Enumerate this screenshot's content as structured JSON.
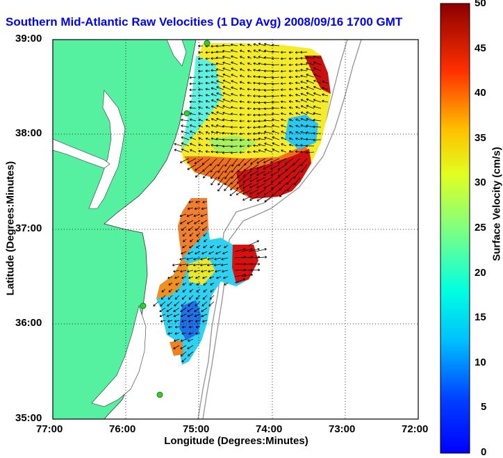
{
  "title": "Southern Mid-Atlantic Raw Velocities (1 Day Avg) 2008/09/16 1700 GMT",
  "axes": {
    "xlabel": "Longitude (Degrees:Minutes)",
    "ylabel": "Latitude (Degrees:Minutes)",
    "x_ticks": [
      "77:00",
      "76:00",
      "75:00",
      "74:00",
      "73:00",
      "72:00"
    ],
    "y_ticks": [
      "39:00",
      "38:00",
      "37:00",
      "36:00",
      "35:00"
    ],
    "grid": "dotted"
  },
  "colorbar": {
    "label": "Surface Velocity (cm/s)",
    "ticks": [
      "50",
      "45",
      "40",
      "35",
      "30",
      "25",
      "20",
      "15",
      "10",
      "5",
      "0"
    ],
    "min": 0,
    "max": 50,
    "colormap": "jet"
  },
  "colors": {
    "land": "#55f0a0",
    "title": "#0000ff",
    "bathymetry": "#999999",
    "station_marker": "#33cc33"
  }
}
